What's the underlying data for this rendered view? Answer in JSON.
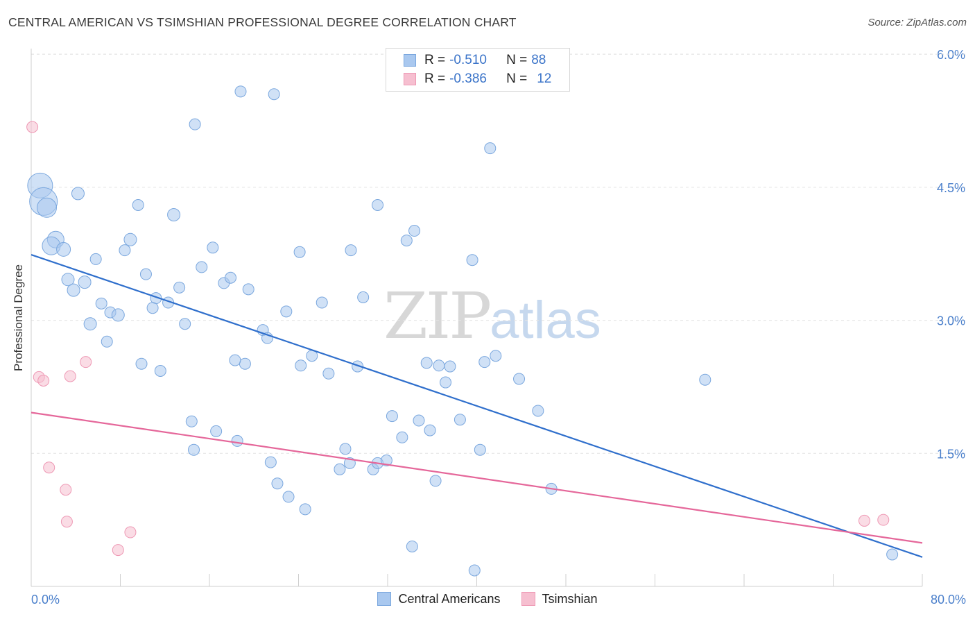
{
  "header": {
    "title": "CENTRAL AMERICAN VS TSIMSHIAN PROFESSIONAL DEGREE CORRELATION CHART",
    "source": "Source: ZipAtlas.com"
  },
  "watermark": {
    "zip": "ZIP",
    "atlas": "atlas"
  },
  "legend": {
    "rows": [
      {
        "r_label": "R =",
        "r_value": "-0.510",
        "n_label": "N =",
        "n_value": "88"
      },
      {
        "r_label": "R =",
        "r_value": "-0.386",
        "n_label": "N =",
        "n_value": "12"
      }
    ]
  },
  "colors": {
    "blue_fill": "#a9c8ef",
    "blue_stroke": "#7aa7de",
    "blue_line": "#2f6fcc",
    "pink_fill": "#f6bfd0",
    "pink_stroke": "#ee98b4",
    "pink_line": "#e5679a",
    "grid": "#e3e3e3",
    "axis_text": "#4a7fcb"
  },
  "chart_data": {
    "type": "scatter",
    "title": "CENTRAL AMERICAN VS TSIMSHIAN PROFESSIONAL DEGREE CORRELATION CHART",
    "xlabel": "",
    "ylabel": "Professional Degree",
    "xlim": [
      0,
      80
    ],
    "ylim": [
      0,
      6.2
    ],
    "x_tick_labels": [
      "0.0%",
      "80.0%"
    ],
    "y_ticks": [
      1.5,
      3.0,
      4.5,
      6.0
    ],
    "y_tick_labels": [
      "1.5%",
      "3.0%",
      "4.5%",
      "6.0%"
    ],
    "grid": true,
    "legend_position": "top-center",
    "series": [
      {
        "name": "Central Americans",
        "r": -0.51,
        "n": 88,
        "trend": {
          "x": [
            0,
            80
          ],
          "y": [
            3.74,
            0.33
          ]
        },
        "points": [
          [
            0.8,
            4.52,
            18
          ],
          [
            1.1,
            4.34,
            20
          ],
          [
            1.4,
            4.27,
            14
          ],
          [
            2.2,
            3.91,
            12
          ],
          [
            1.8,
            3.84,
            13
          ],
          [
            2.9,
            3.8,
            10
          ],
          [
            4.2,
            4.43,
            9
          ],
          [
            3.3,
            3.46,
            9
          ],
          [
            3.8,
            3.34,
            9
          ],
          [
            4.8,
            3.43,
            9
          ],
          [
            5.8,
            3.69,
            8
          ],
          [
            6.3,
            3.19,
            8
          ],
          [
            5.3,
            2.96,
            9
          ],
          [
            7.1,
            3.09,
            8
          ],
          [
            7.8,
            3.06,
            9
          ],
          [
            6.8,
            2.76,
            8
          ],
          [
            8.4,
            3.79,
            8
          ],
          [
            8.9,
            3.91,
            9
          ],
          [
            9.6,
            4.3,
            8
          ],
          [
            10.3,
            3.52,
            8
          ],
          [
            11.2,
            3.25,
            8
          ],
          [
            10.9,
            3.14,
            8
          ],
          [
            12.3,
            3.2,
            8
          ],
          [
            12.8,
            4.19,
            9
          ],
          [
            13.3,
            3.37,
            8
          ],
          [
            13.8,
            2.96,
            8
          ],
          [
            11.6,
            2.43,
            8
          ],
          [
            9.9,
            2.51,
            8
          ],
          [
            15.3,
            3.6,
            8
          ],
          [
            16.3,
            3.82,
            8
          ],
          [
            17.3,
            3.42,
            8
          ],
          [
            17.9,
            3.48,
            8
          ],
          [
            19.5,
            3.35,
            8
          ],
          [
            20.8,
            2.89,
            8
          ],
          [
            21.2,
            2.8,
            8
          ],
          [
            18.8,
            5.58,
            8
          ],
          [
            21.8,
            5.55,
            8
          ],
          [
            14.7,
            5.21,
            8
          ],
          [
            19.2,
            2.51,
            8
          ],
          [
            18.3,
            2.55,
            8
          ],
          [
            22.9,
            3.1,
            8
          ],
          [
            24.1,
            3.77,
            8
          ],
          [
            25.2,
            2.6,
            8
          ],
          [
            24.2,
            2.49,
            8
          ],
          [
            26.1,
            3.2,
            8
          ],
          [
            26.7,
            2.4,
            8
          ],
          [
            28.7,
            3.79,
            8
          ],
          [
            29.8,
            3.26,
            8
          ],
          [
            29.3,
            2.48,
            8
          ],
          [
            31.1,
            4.3,
            8
          ],
          [
            33.7,
            3.9,
            8
          ],
          [
            34.4,
            4.01,
            8
          ],
          [
            35.5,
            2.52,
            8
          ],
          [
            36.6,
            2.49,
            8
          ],
          [
            37.6,
            2.48,
            8
          ],
          [
            37.2,
            2.3,
            8
          ],
          [
            39.6,
            3.68,
            8
          ],
          [
            41.2,
            4.94,
            8
          ],
          [
            40.7,
            2.53,
            8
          ],
          [
            41.7,
            2.6,
            8
          ],
          [
            43.8,
            2.34,
            8
          ],
          [
            45.5,
            1.98,
            8
          ],
          [
            60.5,
            2.33,
            8
          ],
          [
            14.4,
            1.86,
            8
          ],
          [
            14.6,
            1.54,
            8
          ],
          [
            16.6,
            1.75,
            8
          ],
          [
            18.5,
            1.64,
            8
          ],
          [
            21.5,
            1.4,
            8
          ],
          [
            22.1,
            1.16,
            8
          ],
          [
            23.1,
            1.01,
            8
          ],
          [
            24.6,
            0.87,
            8
          ],
          [
            27.7,
            1.32,
            8
          ],
          [
            28.2,
            1.55,
            8
          ],
          [
            28.6,
            1.39,
            8
          ],
          [
            30.7,
            1.32,
            8
          ],
          [
            31.1,
            1.39,
            8
          ],
          [
            31.9,
            1.42,
            8
          ],
          [
            32.4,
            1.92,
            8
          ],
          [
            33.3,
            1.68,
            8
          ],
          [
            34.8,
            1.87,
            8
          ],
          [
            35.8,
            1.76,
            8
          ],
          [
            36.3,
            1.19,
            8
          ],
          [
            38.5,
            1.88,
            8
          ],
          [
            40.3,
            1.54,
            8
          ],
          [
            46.7,
            1.1,
            8
          ],
          [
            34.2,
            0.45,
            8
          ],
          [
            39.8,
            0.18,
            8
          ],
          [
            77.3,
            0.36,
            8
          ]
        ]
      },
      {
        "name": "Tsimshian",
        "r": -0.386,
        "n": 12,
        "trend": {
          "x": [
            0,
            80
          ],
          "y": [
            1.96,
            0.49
          ]
        },
        "points": [
          [
            0.1,
            5.18,
            8
          ],
          [
            0.7,
            2.36,
            8
          ],
          [
            1.1,
            2.32,
            8
          ],
          [
            1.6,
            1.34,
            8
          ],
          [
            3.1,
            1.09,
            8
          ],
          [
            3.2,
            0.73,
            8
          ],
          [
            3.5,
            2.37,
            8
          ],
          [
            4.9,
            2.53,
            8
          ],
          [
            7.8,
            0.41,
            8
          ],
          [
            8.9,
            0.61,
            8
          ],
          [
            74.8,
            0.74,
            8
          ],
          [
            76.5,
            0.75,
            8
          ]
        ]
      }
    ]
  }
}
